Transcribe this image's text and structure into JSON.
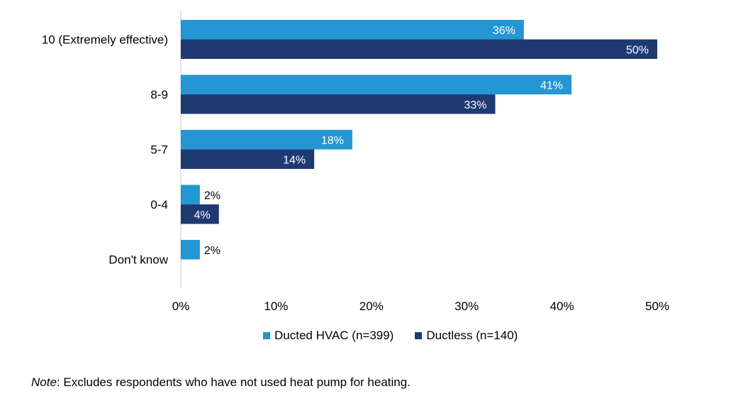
{
  "chart_data": {
    "type": "bar",
    "orientation": "horizontal",
    "categories": [
      "10 (Extremely effective)",
      "8-9",
      "5-7",
      "0-4",
      "Don't know"
    ],
    "series": [
      {
        "name": "Ducted HVAC (n=399)",
        "color": "#2596d4",
        "values": [
          36,
          41,
          18,
          2,
          2
        ],
        "labels": [
          "36%",
          "41%",
          "18%",
          "2%",
          "2%"
        ]
      },
      {
        "name": "Ductless (n=140)",
        "color": "#1f3a73",
        "values": [
          50,
          33,
          14,
          4,
          null
        ],
        "labels": [
          "50%",
          "33%",
          "14%",
          "4%",
          ""
        ]
      }
    ],
    "xlim": [
      0,
      50
    ],
    "xticks": [
      "0%",
      "10%",
      "20%",
      "30%",
      "40%",
      "50%"
    ],
    "grid": false,
    "legend_position": "bottom"
  },
  "note": {
    "label": "Note",
    "text": ": Excludes respondents who have not used heat pump for heating."
  }
}
